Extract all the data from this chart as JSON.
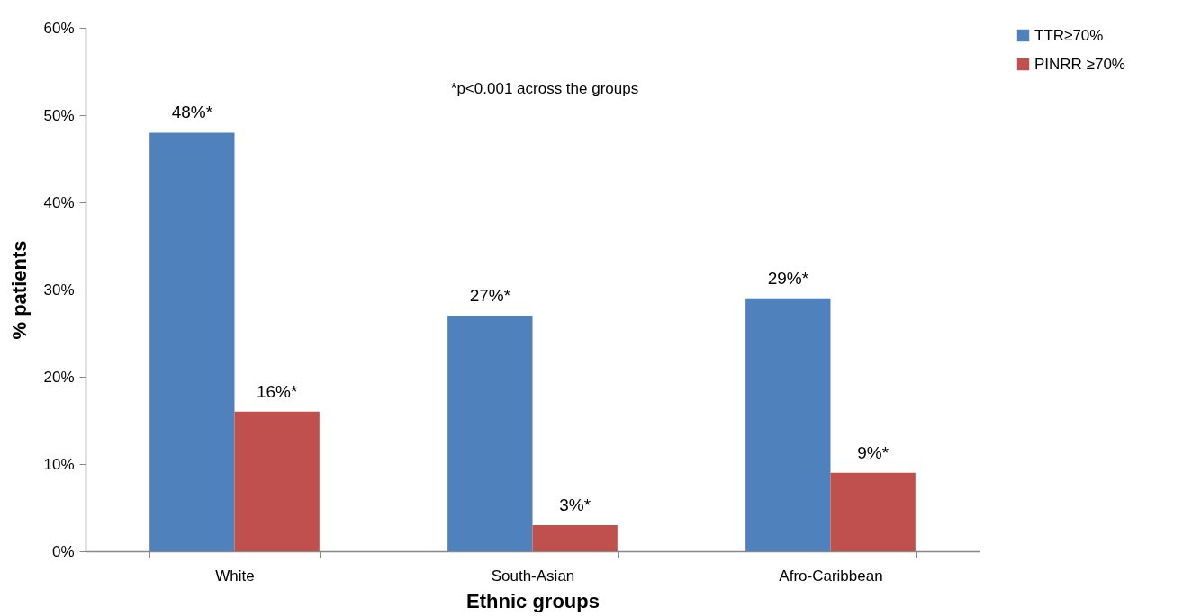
{
  "chart_data": {
    "type": "bar",
    "xlabel": "Ethnic groups",
    "ylabel": "% patients",
    "annotations": [
      "*p<0.001 across the groups"
    ],
    "categories": [
      "White",
      "South-Asian",
      "Afro-Caribbean"
    ],
    "series": [
      {
        "name": "TTR≥70%",
        "color": "#4f81bd",
        "values": [
          48,
          27,
          29
        ],
        "value_labels": [
          "48%*",
          "27%*",
          "29%*"
        ]
      },
      {
        "name": "PINRR ≥70%",
        "color": "#c0504d",
        "values": [
          16,
          3,
          9
        ],
        "value_labels": [
          "16%*",
          "3%*",
          "9%*"
        ]
      }
    ],
    "ylim": [
      0,
      60
    ],
    "yticks": [
      {
        "value": 0,
        "label": "0%"
      },
      {
        "value": 10,
        "label": "10%"
      },
      {
        "value": 20,
        "label": "20%"
      },
      {
        "value": 30,
        "label": "30%"
      },
      {
        "value": 40,
        "label": "40%"
      },
      {
        "value": 50,
        "label": "50%"
      },
      {
        "value": 60,
        "label": "60%"
      }
    ],
    "grid": false,
    "legend": "right"
  }
}
